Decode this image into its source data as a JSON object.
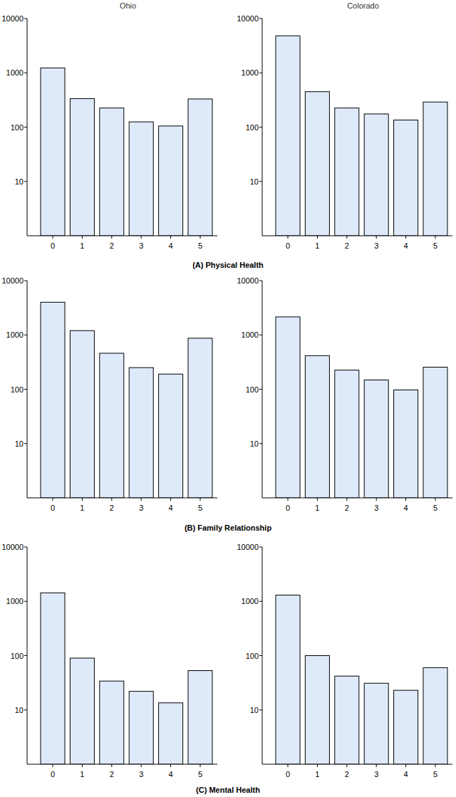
{
  "chart_data": [
    {
      "type": "bar",
      "title": "Ohio",
      "categories": [
        "0",
        "1",
        "2",
        "3",
        "4",
        "5"
      ],
      "values": [
        1230,
        335,
        225,
        125,
        105,
        330
      ],
      "color": "#deeafa",
      "log": "y",
      "ylim": [
        1,
        10000
      ],
      "yticks": [
        10,
        100,
        1000,
        10000
      ]
    },
    {
      "type": "bar",
      "title": "Colorado",
      "categories": [
        "0",
        "1",
        "2",
        "3",
        "4",
        "5"
      ],
      "values": [
        4800,
        450,
        225,
        175,
        135,
        290
      ],
      "color": "#deeafa",
      "log": "y",
      "ylim": [
        1,
        10000
      ],
      "yticks": [
        10,
        100,
        1000,
        10000
      ]
    },
    {
      "type": "bar",
      "categories": [
        "0",
        "1",
        "2",
        "3",
        "4",
        "5"
      ],
      "values": [
        4000,
        1200,
        460,
        250,
        190,
        870
      ],
      "color": "#deeafa",
      "log": "y",
      "ylim": [
        1,
        10000
      ],
      "yticks": [
        10,
        100,
        1000,
        10000
      ]
    },
    {
      "type": "bar",
      "categories": [
        "0",
        "1",
        "2",
        "3",
        "4",
        "5"
      ],
      "values": [
        2150,
        415,
        225,
        148,
        97,
        255
      ],
      "color": "#deeafa",
      "log": "y",
      "ylim": [
        1,
        10000
      ],
      "yticks": [
        10,
        100,
        1000,
        10000
      ]
    },
    {
      "type": "bar",
      "categories": [
        "0",
        "1",
        "2",
        "3",
        "4",
        "5"
      ],
      "values": [
        1430,
        90,
        34,
        22,
        13.5,
        53
      ],
      "color": "#deeafa",
      "log": "y",
      "ylim": [
        1,
        10000
      ],
      "yticks": [
        10,
        100,
        1000,
        10000
      ]
    },
    {
      "type": "bar",
      "categories": [
        "0",
        "1",
        "2",
        "3",
        "4",
        "5"
      ],
      "values": [
        1300,
        100,
        42,
        31,
        23,
        60
      ],
      "color": "#deeafa",
      "log": "y",
      "ylim": [
        1,
        10000
      ],
      "yticks": [
        10,
        100,
        1000,
        10000
      ]
    }
  ],
  "panel_labels": [
    "(A) Physical Health",
    "(B) Family Relationship",
    "(C) Mental Health"
  ]
}
